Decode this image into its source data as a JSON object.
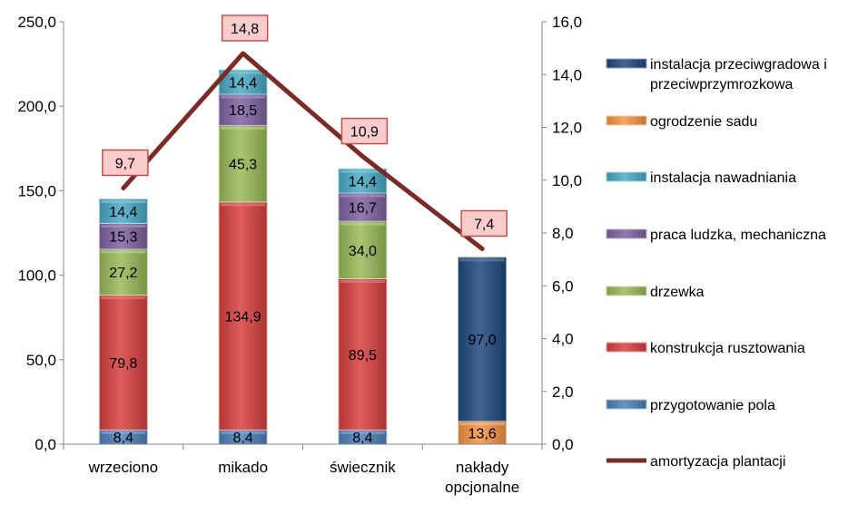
{
  "chart_data": {
    "type": "bar",
    "stacked": true,
    "categories": [
      "wrzeciono",
      "mikado",
      "świecznik",
      "nakłady opcjonalne"
    ],
    "y_left": {
      "min": 0,
      "max": 250,
      "step": 50,
      "ticks": [
        "0,0",
        "50,0",
        "100,0",
        "150,0",
        "200,0",
        "250,0"
      ]
    },
    "y_right": {
      "min": 0,
      "max": 16,
      "step": 2,
      "ticks": [
        "0,0",
        "2,0",
        "4,0",
        "6,0",
        "8,0",
        "10,0",
        "12,0",
        "14,0",
        "16,0"
      ]
    },
    "series": [
      {
        "name": "przygotowanie pola",
        "color": "#4f81bd",
        "values": [
          8.4,
          8.4,
          8.4,
          0
        ],
        "labels": [
          "8,4",
          "8,4",
          "8,4",
          ""
        ]
      },
      {
        "name": "konstrukcja rusztowania",
        "color": "#d9413f",
        "values": [
          79.8,
          134.9,
          89.5,
          0
        ],
        "labels": [
          "79,8",
          "134,9",
          "89,5",
          ""
        ]
      },
      {
        "name": "drzewka",
        "color": "#9bbb59",
        "values": [
          27.2,
          45.3,
          34.0,
          0
        ],
        "labels": [
          "27,2",
          "45,3",
          "34,0",
          ""
        ]
      },
      {
        "name": "praca ludzka, mechaniczna",
        "color": "#8064a2",
        "values": [
          15.3,
          18.5,
          16.7,
          0
        ],
        "labels": [
          "15,3",
          "18,5",
          "16,7",
          ""
        ]
      },
      {
        "name": "instalacja nawadniania",
        "color": "#4bacc6",
        "values": [
          14.4,
          14.4,
          14.4,
          0
        ],
        "labels": [
          "14,4",
          "14,4",
          "14,4",
          ""
        ]
      },
      {
        "name": "ogrodzenie sadu",
        "color": "#f79646",
        "values": [
          0,
          0,
          0,
          13.6
        ],
        "labels": [
          "",
          "",
          "",
          "13,6"
        ]
      },
      {
        "name": "instalacja przeciwgradowa i przeciwprzymrozkowa",
        "color": "#1f497d",
        "values": [
          0,
          0,
          0,
          97.0
        ],
        "labels": [
          "",
          "",
          "",
          "97,0"
        ]
      }
    ],
    "line_series": {
      "name": "amortyzacja plantacji",
      "color": "#7b2a28",
      "axis": "right",
      "values": [
        9.7,
        14.8,
        10.9,
        7.4
      ],
      "labels": [
        "9,7",
        "14,8",
        "10,9",
        "7,4"
      ]
    },
    "legend": {
      "placement": "right",
      "order": [
        "instalacja przeciwgradowa i przeciwprzymrozkowa",
        "ogrodzenie sadu",
        "instalacja nawadniania",
        "praca ludzka, mechaniczna",
        "drzewka",
        "konstrukcja rusztowania",
        "przygotowanie pola",
        "amortyzacja plantacji"
      ]
    },
    "grid": false
  }
}
